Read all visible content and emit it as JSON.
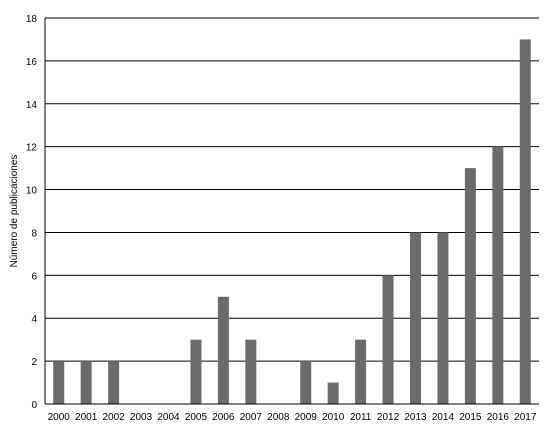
{
  "chart_data": {
    "type": "bar",
    "categories": [
      "2000",
      "2001",
      "2002",
      "2003",
      "2004",
      "2005",
      "2006",
      "2007",
      "2008",
      "2009",
      "2010",
      "2011",
      "2012",
      "2013",
      "2014",
      "2015",
      "2016",
      "2017"
    ],
    "values": [
      2,
      2,
      2,
      0,
      0,
      3,
      5,
      3,
      0,
      2,
      1,
      3,
      6,
      8,
      8,
      11,
      12,
      17
    ],
    "title": "",
    "xlabel": "",
    "ylabel": "Número de publicaciones",
    "ylim": [
      0,
      18
    ],
    "yticks": [
      0,
      2,
      4,
      6,
      8,
      10,
      12,
      14,
      16,
      18
    ],
    "grid": true,
    "legend": "none",
    "bar_color": "#6b6b6b",
    "grid_color": "#000000"
  }
}
